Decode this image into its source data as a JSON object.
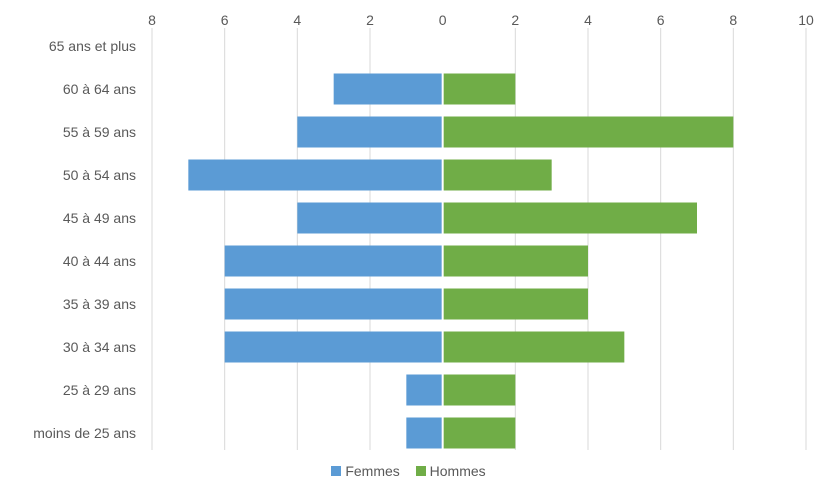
{
  "chart_data": {
    "type": "bar",
    "orientation": "horizontal",
    "layout": "population-pyramid",
    "categories": [
      "65 ans et plus",
      "60 à 64 ans",
      "55 à 59 ans",
      "50 à 54 ans",
      "45 à 49 ans",
      "40 à 44 ans",
      "35 à 39 ans",
      "30 à 34 ans",
      "25 à 29 ans",
      "moins de 25 ans"
    ],
    "series": [
      {
        "name": "Femmes",
        "color": "#5b9bd5",
        "side": "left",
        "values": [
          0,
          3,
          4,
          7,
          4,
          6,
          6,
          6,
          1,
          1
        ]
      },
      {
        "name": "Hommes",
        "color": "#70ad47",
        "side": "right",
        "values": [
          0,
          2,
          8,
          3,
          7,
          4,
          4,
          5,
          2,
          2
        ]
      }
    ],
    "xlim": [
      -8,
      10
    ],
    "x_tick_labels": [
      "8",
      "6",
      "4",
      "2",
      "0",
      "2",
      "4",
      "6",
      "8",
      "10"
    ],
    "x_tick_values": [
      -8,
      -6,
      -4,
      -2,
      0,
      2,
      4,
      6,
      8,
      10
    ],
    "x_axis_position": "top",
    "grid": true,
    "legend": "bottom",
    "title": "",
    "xlabel": "",
    "ylabel": ""
  }
}
